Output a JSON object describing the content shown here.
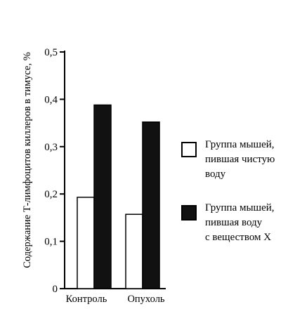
{
  "chart_data": {
    "type": "bar",
    "ylabel": "Содержание Т-лимфоцитов киллеров в тимусе, %",
    "xlabel": "",
    "title": "",
    "categories": [
      "Контроль",
      "Опухоль"
    ],
    "ylim": [
      0,
      0.5
    ],
    "yticks": [
      "0",
      "0,1",
      "0,2",
      "0,3",
      "0,4",
      "0,5"
    ],
    "ytick_values": [
      0,
      0.1,
      0.2,
      0.3,
      0.4,
      0.5
    ],
    "grid": false,
    "legend_position": "right",
    "series": [
      {
        "name": "Группа мышей, пившая чистую воду",
        "values": [
          0.193,
          0.157
        ],
        "color": "#ffffff"
      },
      {
        "name": "Группа мышей, пившая воду с веществом X",
        "values": [
          0.388,
          0.352
        ],
        "color": "#111111"
      }
    ]
  },
  "legend": [
    {
      "lines": [
        "Группа мышей,",
        "пившая чистую",
        "воду"
      ],
      "swatch": "#ffffff"
    },
    {
      "lines": [
        "Группа мышей,",
        "пившая воду",
        "с веществом X"
      ],
      "swatch": "#111111"
    }
  ]
}
